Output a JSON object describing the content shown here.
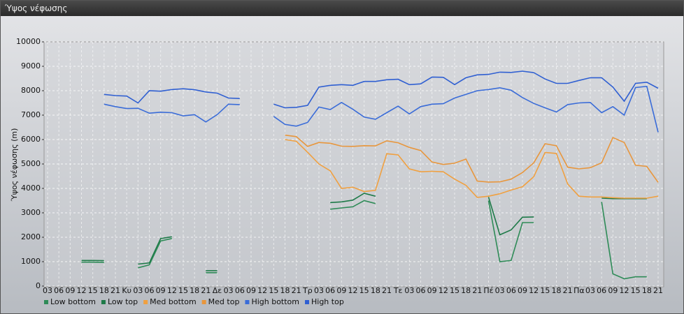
{
  "window_title": "Ύψος νέφωσης",
  "chart_data": {
    "type": "line",
    "ylabel": "Ύψος νέφωσης (m)",
    "categories": [
      "03",
      "06",
      "09",
      "12",
      "15",
      "18",
      "21",
      "Κυ",
      "03",
      "06",
      "09",
      "12",
      "15",
      "18",
      "21",
      "Δε",
      "03",
      "06",
      "09",
      "12",
      "15",
      "18",
      "21",
      "Τρ",
      "03",
      "06",
      "09",
      "12",
      "15",
      "18",
      "21",
      "Τε",
      "03",
      "06",
      "09",
      "12",
      "15",
      "18",
      "21",
      "Πέ",
      "03",
      "06",
      "09",
      "12",
      "15",
      "18",
      "21",
      "Πα",
      "03",
      "06",
      "09",
      "12",
      "15",
      "18",
      "21"
    ],
    "ylim": [
      0,
      10000
    ],
    "yticks": [
      0,
      1000,
      2000,
      3000,
      4000,
      5000,
      6000,
      7000,
      8000,
      9000,
      10000
    ],
    "grid": true,
    "legend": "bottom",
    "series": [
      {
        "name": "Low bottom",
        "color": "#2e8b57",
        "values": [
          null,
          null,
          null,
          980,
          980,
          970,
          null,
          null,
          750,
          870,
          1850,
          1950,
          null,
          null,
          550,
          550,
          null,
          null,
          null,
          null,
          null,
          null,
          null,
          null,
          null,
          3150,
          3200,
          3250,
          3500,
          3380,
          null,
          null,
          null,
          null,
          null,
          null,
          null,
          null,
          null,
          3500,
          1000,
          1050,
          2600,
          2600,
          null,
          null,
          null,
          null,
          null,
          3450,
          500,
          300,
          380,
          380,
          null
        ]
      },
      {
        "name": "Low top",
        "color": "#1e7a48",
        "values": [
          null,
          null,
          null,
          1050,
          1050,
          1040,
          null,
          null,
          900,
          950,
          1950,
          2020,
          null,
          null,
          630,
          630,
          null,
          null,
          null,
          null,
          null,
          null,
          null,
          null,
          null,
          3420,
          3450,
          3520,
          3800,
          3680,
          null,
          null,
          null,
          null,
          null,
          null,
          null,
          null,
          null,
          3650,
          2100,
          2300,
          2820,
          2830,
          null,
          null,
          null,
          null,
          null,
          3600,
          3580,
          3580,
          3580,
          3580,
          null
        ]
      },
      {
        "name": "Med bottom",
        "color": "#f0a040",
        "values": [
          null,
          null,
          null,
          null,
          null,
          null,
          null,
          null,
          null,
          null,
          null,
          null,
          null,
          null,
          null,
          null,
          null,
          null,
          null,
          null,
          null,
          6000,
          5930,
          5480,
          5000,
          4720,
          4000,
          4050,
          3870,
          3920,
          5420,
          5370,
          4800,
          4680,
          4700,
          4680,
          4380,
          4130,
          3630,
          3680,
          3780,
          3930,
          4070,
          4480,
          5470,
          5430,
          4180,
          3680,
          3650,
          3650,
          3620,
          3600,
          3600,
          3600,
          3680
        ]
      },
      {
        "name": "Med top",
        "color": "#e8963c",
        "values": [
          null,
          null,
          null,
          null,
          null,
          null,
          null,
          null,
          null,
          null,
          null,
          null,
          null,
          null,
          null,
          null,
          null,
          null,
          null,
          null,
          null,
          6180,
          6120,
          5720,
          5880,
          5850,
          5730,
          5720,
          5750,
          5740,
          5950,
          5870,
          5680,
          5550,
          5080,
          4980,
          5030,
          5200,
          4300,
          4260,
          4270,
          4380,
          4650,
          5050,
          5830,
          5750,
          4870,
          4800,
          4850,
          5050,
          6080,
          5880,
          4950,
          4900,
          4250
        ]
      },
      {
        "name": "High bottom",
        "color": "#3a6cd8",
        "values": [
          null,
          null,
          null,
          null,
          null,
          7450,
          7350,
          7270,
          7280,
          7080,
          7120,
          7100,
          6970,
          7020,
          6720,
          7020,
          7450,
          7430,
          null,
          null,
          6950,
          6620,
          6550,
          6700,
          7330,
          7230,
          7520,
          7240,
          6920,
          6830,
          7100,
          7370,
          7050,
          7350,
          7450,
          7470,
          7700,
          7850,
          8000,
          8050,
          8120,
          8020,
          7720,
          7480,
          7300,
          7130,
          7430,
          7500,
          7520,
          7100,
          7350,
          7000,
          8130,
          8180,
          6300
        ]
      },
      {
        "name": "High top",
        "color": "#2f5fd2",
        "values": [
          null,
          null,
          null,
          null,
          null,
          7850,
          7800,
          7780,
          7500,
          8000,
          7980,
          8050,
          8080,
          8040,
          7950,
          7900,
          7700,
          7680,
          null,
          null,
          7450,
          7300,
          7320,
          7400,
          8150,
          8220,
          8250,
          8220,
          8380,
          8380,
          8450,
          8470,
          8250,
          8280,
          8560,
          8550,
          8250,
          8530,
          8650,
          8670,
          8760,
          8750,
          8800,
          8740,
          8480,
          8300,
          8300,
          8420,
          8530,
          8530,
          8150,
          7570,
          8300,
          8350,
          8100
        ]
      }
    ]
  }
}
